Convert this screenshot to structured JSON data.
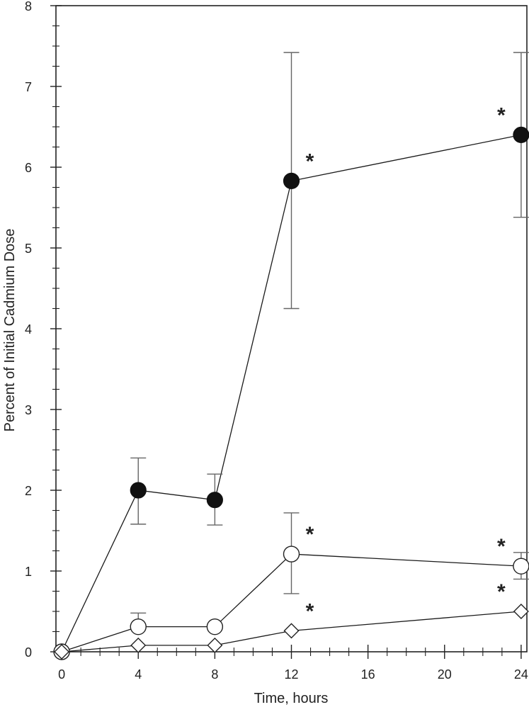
{
  "chart_data": {
    "type": "line",
    "title": "",
    "xlabel": "Time, hours",
    "ylabel": "Percent of Initial Cadmium Dose",
    "xlim": [
      -0.3,
      24.3
    ],
    "ylim": [
      0,
      8
    ],
    "x_ticks": [
      0,
      4,
      8,
      12,
      16,
      20,
      24
    ],
    "y_ticks": [
      0,
      1,
      2,
      3,
      4,
      5,
      6,
      7,
      8
    ],
    "grid": false,
    "legend": "none",
    "colors": {
      "line": "#1a1a1a",
      "filled_marker": "#111111",
      "open_marker_fill": "#ffffff",
      "error_bar": "#666666"
    },
    "series": [
      {
        "marker": "filled-circle",
        "x": [
          0,
          4,
          8,
          12,
          24
        ],
        "y": [
          0,
          2.0,
          1.88,
          5.83,
          6.4
        ],
        "err_low": [
          null,
          1.58,
          1.57,
          4.25,
          5.38
        ],
        "err_high": [
          null,
          2.4,
          2.2,
          7.42,
          7.42
        ],
        "significant": [
          false,
          false,
          false,
          true,
          true
        ]
      },
      {
        "marker": "open-circle",
        "x": [
          0,
          4,
          8,
          12,
          24
        ],
        "y": [
          0,
          0.31,
          0.31,
          1.21,
          1.06
        ],
        "err_low": [
          null,
          null,
          null,
          0.72,
          0.9
        ],
        "err_high": [
          null,
          0.48,
          null,
          1.72,
          1.23
        ],
        "significant": [
          false,
          false,
          false,
          true,
          true
        ]
      },
      {
        "marker": "open-diamond",
        "x": [
          0,
          4,
          8,
          12,
          24
        ],
        "y": [
          0,
          0.08,
          0.08,
          0.26,
          0.5
        ],
        "err_low": [
          null,
          null,
          null,
          null,
          null
        ],
        "err_high": [
          null,
          null,
          null,
          null,
          null
        ],
        "significant": [
          false,
          false,
          false,
          true,
          true
        ]
      }
    ],
    "annotations": {
      "significance_symbol": "*"
    }
  }
}
